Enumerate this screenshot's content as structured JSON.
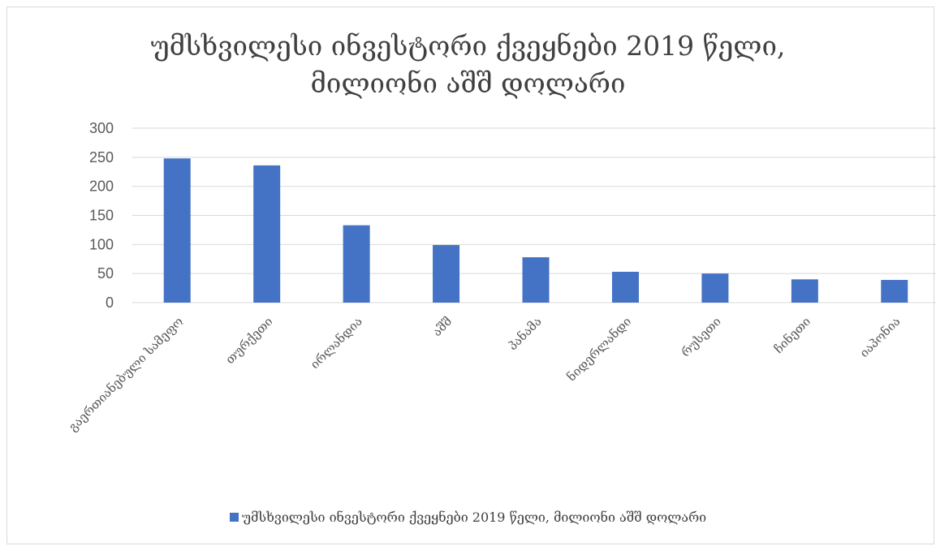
{
  "colors": {
    "bar": "#4472c4",
    "grid": "#d9d9d9",
    "text": "#595959",
    "title": "#404040"
  },
  "chart_data": {
    "type": "bar",
    "title_lines": [
      "უმსხვილესი ინვესტორი ქვეყნები 2019 წელი,",
      "მილიონი აშშ დოლარი"
    ],
    "categories": [
      "გაერთიანებული სამეფო",
      "თურქეთი",
      "ირლანდია",
      "აშშ",
      "პანამა",
      "ნიდერლანდი",
      "რუსეთი",
      "ჩინეთი",
      "იაპონია"
    ],
    "series": [
      {
        "name": "უმსხვილესი ინვესტორი ქვეყნები 2019 წელი, მილიონი აშშ დოლარი",
        "values": [
          248,
          236,
          133,
          99,
          78,
          53,
          50,
          40,
          39
        ]
      }
    ],
    "ylim": [
      0,
      300
    ],
    "yticks": [
      0,
      50,
      100,
      150,
      200,
      250,
      300
    ],
    "grid": true,
    "legend": "bottom"
  }
}
